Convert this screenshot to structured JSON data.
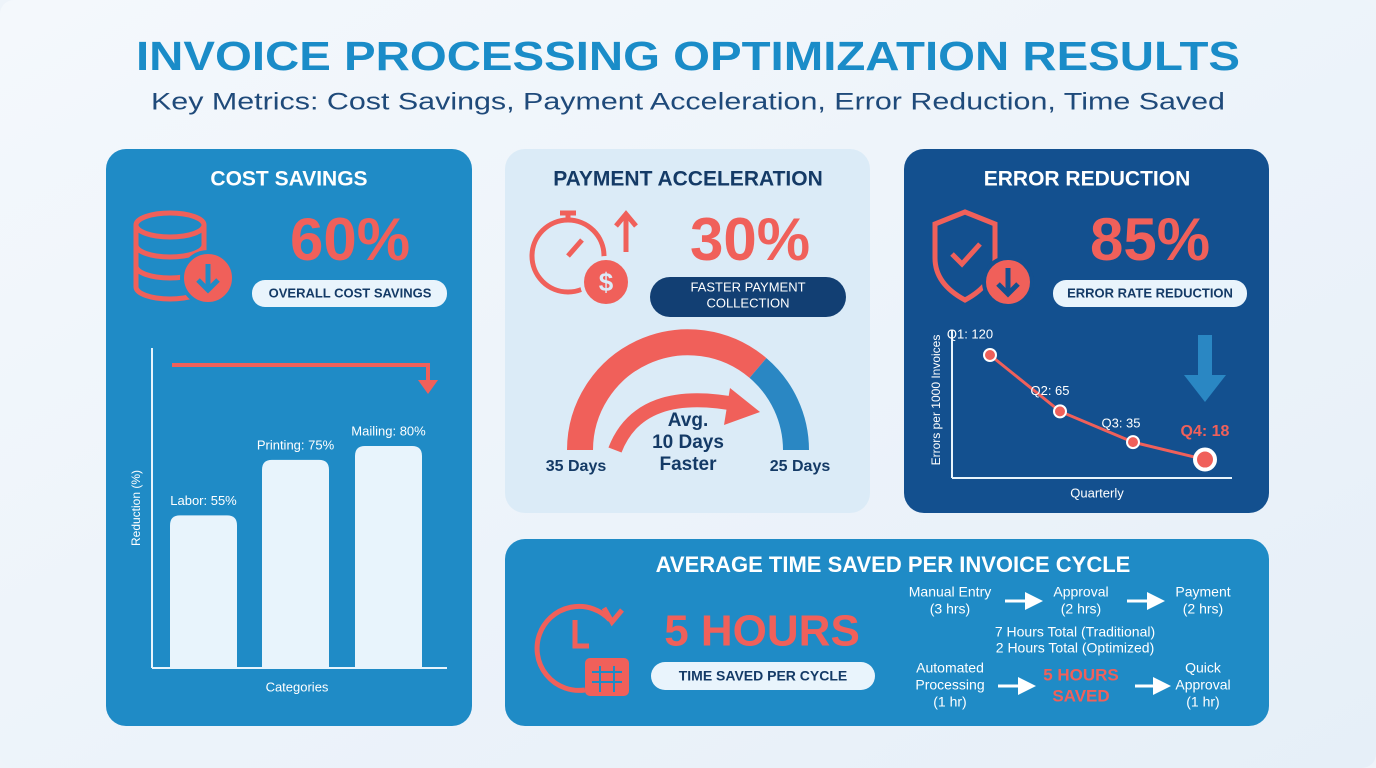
{
  "header": {
    "title": "INVOICE PROCESSING OPTIMIZATION RESULTS",
    "subtitle": "Key Metrics: Cost Savings, Payment Acceleration, Error Reduction, Time Saved"
  },
  "cost_savings": {
    "title": "COST SAVINGS",
    "stat": "60%",
    "stat_label": "OVERALL COST SAVINGS",
    "chart": {
      "type": "bar",
      "values": [
        55,
        75,
        80
      ],
      "value_labels": [
        "Labor: 55%",
        "Printing: 75%",
        "Mailing: 80%"
      ],
      "x_label": "Categories",
      "y_label": "Reduction (%)"
    }
  },
  "payment_acceleration": {
    "title": "PAYMENT ACCELERATION",
    "stat": "30%",
    "stat_label_lines": [
      "FASTER PAYMENT",
      "COLLECTION"
    ],
    "gauge": {
      "start_label": "35 Days",
      "end_label": "25 Days",
      "center_lines": [
        "Avg.",
        "10 Days",
        "Faster"
      ]
    }
  },
  "error_reduction": {
    "title": "ERROR REDUCTION",
    "stat": "85%",
    "stat_label": "ERROR RATE REDUCTION",
    "chart": {
      "type": "line",
      "values": [
        120,
        65,
        35,
        18
      ],
      "value_labels": [
        "Q1: 120",
        "Q2: 65",
        "Q3: 35",
        "Q4: 18"
      ],
      "x_label": "Quarterly",
      "y_label": "Errors per 1000 Invoices"
    }
  },
  "time_saved": {
    "title": "AVERAGE TIME SAVED PER INVOICE CYCLE",
    "stat": "5 HOURS",
    "stat_label": "TIME SAVED PER CYCLE",
    "traditional_steps": [
      [
        "Manual Entry",
        "(3 hrs)"
      ],
      [
        "Approval",
        "(2 hrs)"
      ],
      [
        "Payment",
        "(2 hrs)"
      ]
    ],
    "totals": [
      "7 Hours Total (Traditional)",
      "2 Hours Total (Optimized)"
    ],
    "optimized_steps": [
      [
        "Automated",
        "Processing",
        "(1 hr)"
      ],
      [
        "5 HOURS",
        "SAVED"
      ],
      [
        "Quick",
        "Approval",
        "(1 hr)"
      ]
    ]
  }
}
